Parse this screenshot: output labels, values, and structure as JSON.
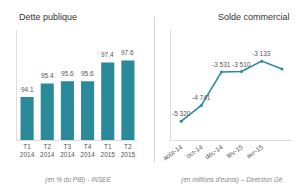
{
  "chart_data": [
    {
      "type": "bar",
      "title": "Dette publique",
      "categories": [
        "T1\n2014",
        "T2\n2014",
        "T3\n2014",
        "T4\n2014",
        "T1\n2015",
        "T2\n2015"
      ],
      "values": [
        94.1,
        95.4,
        95.6,
        95.6,
        97.4,
        97.6
      ],
      "color": "#2a8a9a",
      "ylim": [
        90,
        100.5
      ],
      "data_labels": true,
      "tick_labels": "x",
      "grid": false,
      "annotations": [
        "(en % du PIB) - INSEE"
      ]
    },
    {
      "type": "line",
      "title": "Solde commercial",
      "categories": [
        "août-14",
        "oct-14",
        "déc-14",
        "fév-15",
        "avr-15",
        null
      ],
      "values": [
        -5320,
        -4741,
        -3531,
        -3510,
        -3133,
        -3420
      ],
      "value_labels": [
        "-5 320",
        "-4 741",
        "-3 531",
        "-3 510",
        "-3 133",
        null
      ],
      "color": "#2a8a9a",
      "marker": "circle",
      "ylim": [
        -6000,
        -2000
      ],
      "data_labels": true,
      "tick_labels": "x",
      "grid": false,
      "annotations": [
        "(en millions d'euros) – Direction Gé"
      ]
    }
  ]
}
